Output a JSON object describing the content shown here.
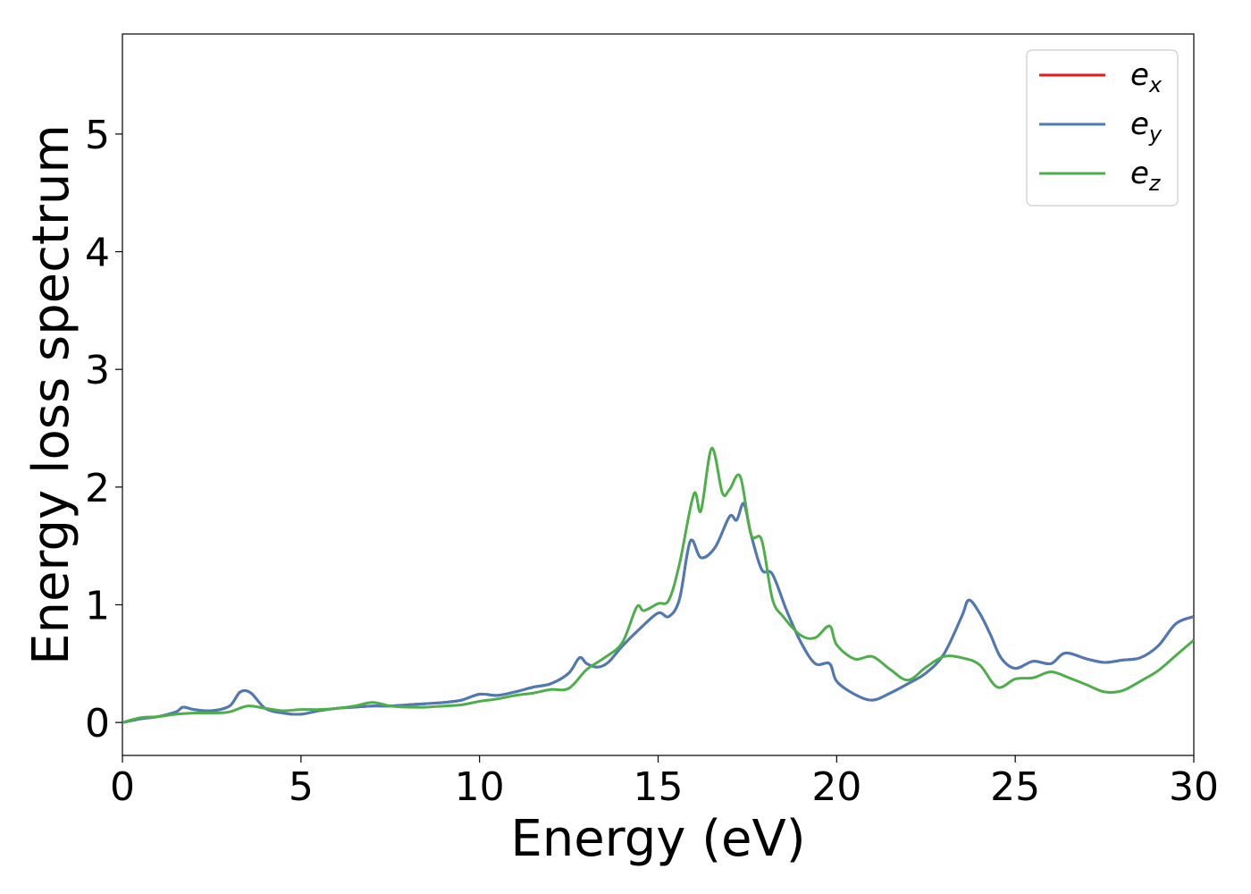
{
  "chart_data": {
    "type": "line",
    "title": "",
    "xlabel": "Energy (eV)",
    "ylabel": "Energy loss spectrum",
    "xlim": [
      0,
      30
    ],
    "ylim": [
      -0.28,
      5.85
    ],
    "xticks": [
      0,
      5,
      10,
      15,
      20,
      25,
      30
    ],
    "yticks": [
      0,
      1,
      2,
      3,
      4,
      5
    ],
    "grid": false,
    "legend_position": "top-right",
    "series": [
      {
        "name": "e",
        "subscript": "x",
        "color": "#e41a1c",
        "x": [
          0,
          0.5,
          1,
          1.5,
          1.7,
          2,
          2.5,
          3,
          3.3,
          3.6,
          4,
          4.5,
          5,
          5.5,
          6,
          6.5,
          7,
          7.5,
          8,
          8.5,
          9,
          9.5,
          10,
          10.5,
          11,
          11.5,
          12,
          12.5,
          12.8,
          13,
          13.3,
          13.6,
          14,
          14.5,
          15,
          15.3,
          15.6,
          15.9,
          16.2,
          16.6,
          17,
          17.2,
          17.4,
          17.6,
          17.9,
          18.2,
          18.6,
          19,
          19.4,
          19.8,
          20,
          20.5,
          21,
          21.5,
          22,
          22.5,
          23,
          23.5,
          23.7,
          24,
          24.3,
          24.6,
          25,
          25.5,
          26,
          26.4,
          27,
          27.5,
          28,
          28.5,
          29,
          29.5,
          30
        ],
        "values": [
          0,
          0.03,
          0.05,
          0.09,
          0.13,
          0.11,
          0.1,
          0.14,
          0.26,
          0.25,
          0.12,
          0.08,
          0.07,
          0.1,
          0.12,
          0.13,
          0.14,
          0.14,
          0.15,
          0.16,
          0.17,
          0.19,
          0.24,
          0.23,
          0.26,
          0.3,
          0.33,
          0.42,
          0.55,
          0.5,
          0.47,
          0.51,
          0.65,
          0.8,
          0.93,
          0.9,
          1.05,
          1.54,
          1.4,
          1.49,
          1.75,
          1.72,
          1.86,
          1.6,
          1.3,
          1.26,
          0.95,
          0.68,
          0.5,
          0.5,
          0.35,
          0.24,
          0.19,
          0.25,
          0.33,
          0.42,
          0.58,
          0.9,
          1.04,
          0.93,
          0.75,
          0.55,
          0.46,
          0.52,
          0.5,
          0.59,
          0.54,
          0.51,
          0.53,
          0.55,
          0.65,
          0.84,
          0.9
        ]
      },
      {
        "name": "e",
        "subscript": "y",
        "color": "#4a7bb7",
        "x": [
          0,
          0.5,
          1,
          1.5,
          1.7,
          2,
          2.5,
          3,
          3.3,
          3.6,
          4,
          4.5,
          5,
          5.5,
          6,
          6.5,
          7,
          7.5,
          8,
          8.5,
          9,
          9.5,
          10,
          10.5,
          11,
          11.5,
          12,
          12.5,
          12.8,
          13,
          13.3,
          13.6,
          14,
          14.5,
          15,
          15.3,
          15.6,
          15.9,
          16.2,
          16.6,
          17,
          17.2,
          17.4,
          17.6,
          17.9,
          18.2,
          18.6,
          19,
          19.4,
          19.8,
          20,
          20.5,
          21,
          21.5,
          22,
          22.5,
          23,
          23.5,
          23.7,
          24,
          24.3,
          24.6,
          25,
          25.5,
          26,
          26.4,
          27,
          27.5,
          28,
          28.5,
          29,
          29.5,
          30
        ],
        "values": [
          0,
          0.03,
          0.05,
          0.09,
          0.13,
          0.11,
          0.1,
          0.14,
          0.26,
          0.25,
          0.12,
          0.08,
          0.07,
          0.1,
          0.12,
          0.13,
          0.14,
          0.14,
          0.15,
          0.16,
          0.17,
          0.19,
          0.24,
          0.23,
          0.26,
          0.3,
          0.33,
          0.42,
          0.55,
          0.5,
          0.47,
          0.51,
          0.65,
          0.8,
          0.93,
          0.9,
          1.05,
          1.54,
          1.4,
          1.49,
          1.75,
          1.72,
          1.86,
          1.6,
          1.3,
          1.26,
          0.95,
          0.68,
          0.5,
          0.5,
          0.35,
          0.24,
          0.19,
          0.25,
          0.33,
          0.42,
          0.58,
          0.9,
          1.04,
          0.93,
          0.75,
          0.55,
          0.46,
          0.52,
          0.5,
          0.59,
          0.54,
          0.51,
          0.53,
          0.55,
          0.65,
          0.84,
          0.9
        ]
      },
      {
        "name": "e",
        "subscript": "z",
        "color": "#4daf4a",
        "x": [
          0,
          0.5,
          1,
          1.5,
          2,
          2.5,
          3,
          3.5,
          4,
          4.5,
          5,
          5.5,
          6,
          6.5,
          7,
          7.5,
          8,
          8.5,
          9,
          9.5,
          10,
          10.5,
          11,
          11.5,
          12,
          12.5,
          13,
          13.5,
          14,
          14.4,
          14.6,
          15,
          15.3,
          15.6,
          16,
          16.2,
          16.5,
          16.8,
          17,
          17.3,
          17.6,
          17.9,
          18.2,
          18.5,
          19,
          19.4,
          19.8,
          20,
          20.5,
          21,
          21.5,
          22,
          22.5,
          23,
          23.5,
          24,
          24.5,
          25,
          25.5,
          26,
          26.5,
          27,
          27.5,
          28,
          28.5,
          29,
          29.5,
          30
        ],
        "values": [
          0,
          0.04,
          0.05,
          0.07,
          0.08,
          0.08,
          0.09,
          0.14,
          0.12,
          0.1,
          0.11,
          0.11,
          0.12,
          0.14,
          0.17,
          0.14,
          0.13,
          0.13,
          0.14,
          0.15,
          0.18,
          0.2,
          0.23,
          0.25,
          0.28,
          0.29,
          0.45,
          0.55,
          0.68,
          0.98,
          0.95,
          1.01,
          1.04,
          1.35,
          1.94,
          1.8,
          2.33,
          1.95,
          1.98,
          2.09,
          1.6,
          1.55,
          1.05,
          0.9,
          0.74,
          0.72,
          0.82,
          0.66,
          0.54,
          0.56,
          0.45,
          0.36,
          0.47,
          0.56,
          0.55,
          0.49,
          0.3,
          0.37,
          0.38,
          0.43,
          0.38,
          0.32,
          0.26,
          0.27,
          0.35,
          0.44,
          0.57,
          0.7
        ]
      }
    ]
  }
}
